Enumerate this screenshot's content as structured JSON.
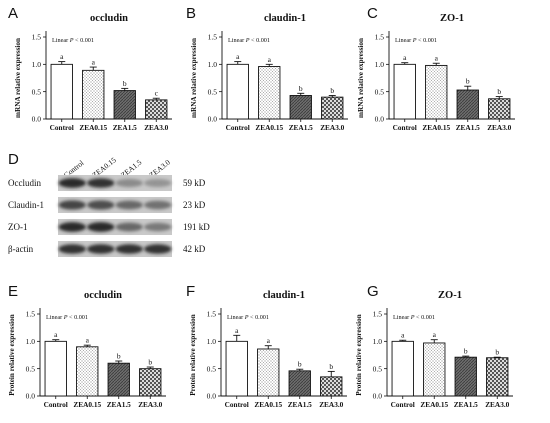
{
  "categories": [
    "Control",
    "ZEA0.15",
    "ZEA1.5",
    "ZEA3.0"
  ],
  "chart_data": [
    {
      "type": "bar",
      "panel": "A",
      "title": "occludin",
      "ylabel": "mRNA relative expression",
      "xlabel": "",
      "ylim": [
        0,
        1.5
      ],
      "yticks": [
        "0.0",
        "0.5",
        "1.0",
        "1.5"
      ],
      "annotation": "Linear P < 0.001",
      "categories": [
        "Control",
        "ZEA0.15",
        "ZEA1.5",
        "ZEA3.0"
      ],
      "values": [
        1.0,
        0.89,
        0.52,
        0.35
      ],
      "errors": [
        0.05,
        0.06,
        0.04,
        0.03
      ],
      "letters": [
        "a",
        "a",
        "b",
        "c"
      ]
    },
    {
      "type": "bar",
      "panel": "B",
      "title": "claudin-1",
      "ylabel": "mRNA relative expression",
      "xlabel": "",
      "ylim": [
        0,
        1.5
      ],
      "yticks": [
        "0.0",
        "0.5",
        "1.0",
        "1.5"
      ],
      "annotation": "Linear P < 0.001",
      "categories": [
        "Control",
        "ZEA0.15",
        "ZEA1.5",
        "ZEA3.0"
      ],
      "values": [
        1.0,
        0.96,
        0.43,
        0.4
      ],
      "errors": [
        0.05,
        0.04,
        0.04,
        0.03
      ],
      "letters": [
        "a",
        "a",
        "b",
        "b"
      ]
    },
    {
      "type": "bar",
      "panel": "C",
      "title": "ZO-1",
      "ylabel": "mRNA relative expression",
      "xlabel": "",
      "ylim": [
        0,
        1.5
      ],
      "yticks": [
        "0.0",
        "0.5",
        "1.0",
        "1.5"
      ],
      "annotation": "Linear P < 0.001",
      "categories": [
        "Control",
        "ZEA0.15",
        "ZEA1.5",
        "ZEA3.0"
      ],
      "values": [
        1.0,
        0.98,
        0.53,
        0.37
      ],
      "errors": [
        0.03,
        0.04,
        0.07,
        0.04
      ],
      "letters": [
        "a",
        "a",
        "b",
        "b"
      ]
    },
    {
      "type": "bar",
      "panel": "E",
      "title": "occludin",
      "ylabel": "Protein relative expression",
      "xlabel": "",
      "ylim": [
        0,
        1.5
      ],
      "yticks": [
        "0.0",
        "0.5",
        "1.0",
        "1.5"
      ],
      "annotation": "Linear P < 0.001",
      "categories": [
        "Control",
        "ZEA0.15",
        "ZEA1.5",
        "ZEA3.0"
      ],
      "values": [
        1.0,
        0.9,
        0.6,
        0.5
      ],
      "errors": [
        0.03,
        0.03,
        0.04,
        0.03
      ],
      "letters": [
        "a",
        "a",
        "b",
        "b"
      ]
    },
    {
      "type": "bar",
      "panel": "F",
      "title": "claudin-1",
      "ylabel": "Protein relative expression",
      "xlabel": "",
      "ylim": [
        0,
        1.5
      ],
      "yticks": [
        "0.0",
        "0.5",
        "1.0",
        "1.5"
      ],
      "annotation": "Linear P < 0.001",
      "categories": [
        "Control",
        "ZEA0.15",
        "ZEA1.5",
        "ZEA3.0"
      ],
      "values": [
        1.0,
        0.86,
        0.46,
        0.35
      ],
      "errors": [
        0.11,
        0.06,
        0.03,
        0.1
      ],
      "letters": [
        "a",
        "a",
        "b",
        "b"
      ]
    },
    {
      "type": "bar",
      "panel": "G",
      "title": "ZO-1",
      "ylabel": "Protein relative expression",
      "xlabel": "",
      "ylim": [
        0,
        1.5
      ],
      "yticks": [
        "0.0",
        "0.5",
        "1.0",
        "1.5"
      ],
      "annotation": "Linear P < 0.001",
      "categories": [
        "Control",
        "ZEA0.15",
        "ZEA1.5",
        "ZEA3.0"
      ],
      "values": [
        1.0,
        0.97,
        0.71,
        0.7
      ],
      "errors": [
        0.02,
        0.06,
        0.02,
        0.01
      ],
      "letters": [
        "a",
        "a",
        "b",
        "b"
      ]
    }
  ],
  "western_blot": {
    "panel": "D",
    "lanes": [
      "Control",
      "ZEA0.15",
      "ZEA1.5",
      "ZEA3.0"
    ],
    "rows": [
      {
        "protein": "Occludin",
        "size": "59 kD",
        "intensity": [
          0.9,
          0.85,
          0.35,
          0.3
        ]
      },
      {
        "protein": "Claudin-1",
        "size": "23 kD",
        "intensity": [
          0.75,
          0.7,
          0.55,
          0.5
        ]
      },
      {
        "protein": "ZO-1",
        "size": "191 kD",
        "intensity": [
          0.9,
          0.9,
          0.55,
          0.45
        ]
      },
      {
        "protein": "β-actin",
        "size": "42 kD",
        "intensity": [
          0.85,
          0.85,
          0.85,
          0.85
        ]
      }
    ]
  },
  "patterns": [
    "white",
    "dots",
    "dark",
    "checker"
  ]
}
